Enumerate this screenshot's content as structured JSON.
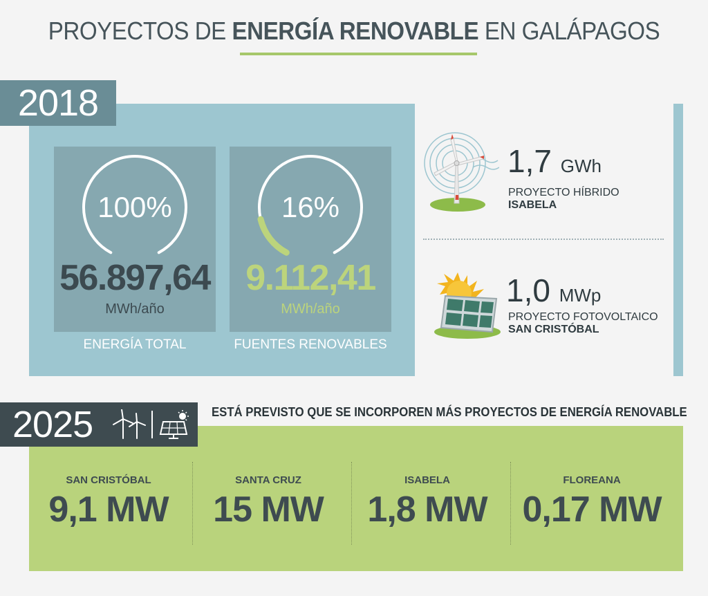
{
  "title": {
    "prefix": "PROYECTOS DE ",
    "bold": "ENERGÍA RENOVABLE",
    "suffix": " EN GALÁPAGOS"
  },
  "y2018": {
    "year": "2018",
    "total": {
      "percent": "100%",
      "percent_value": 100,
      "value": "56.897,64",
      "unit": "MWh/año",
      "caption": "ENERGÍA TOTAL"
    },
    "renewable": {
      "percent": "16%",
      "percent_value": 16,
      "value": "9.112,41",
      "unit": "MWh/año",
      "caption": "FUENTES RENOVABLES"
    },
    "projects": [
      {
        "icon": "wind-turbine-icon",
        "value": "1,7",
        "unit": "GWh",
        "line1": "PROYECTO HÍBRIDO",
        "line2": "ISABELA"
      },
      {
        "icon": "solar-panel-icon",
        "value": "1,0",
        "unit": "MWp",
        "line1": "PROYECTO FOTOVOLTAICO",
        "line2": "SAN CRISTÓBAL"
      }
    ]
  },
  "y2025": {
    "year": "2025",
    "headline": "ESTÁ PREVISTO QUE SE INCORPOREN MÁS PROYECTOS DE ENERGÍA RENOVABLE",
    "islands": [
      {
        "name": "SAN CRISTÓBAL",
        "value": "9,1 MW"
      },
      {
        "name": "SANTA CRUZ",
        "value": "15 MW"
      },
      {
        "name": "ISABELA",
        "value": "1,8 MW"
      },
      {
        "name": "FLOREANA",
        "value": "0,17 MW"
      }
    ]
  },
  "colors": {
    "green": "#b9d37c",
    "blue": "#9dc6d0",
    "dark": "#3e4b50",
    "card": "#86a8b0"
  }
}
